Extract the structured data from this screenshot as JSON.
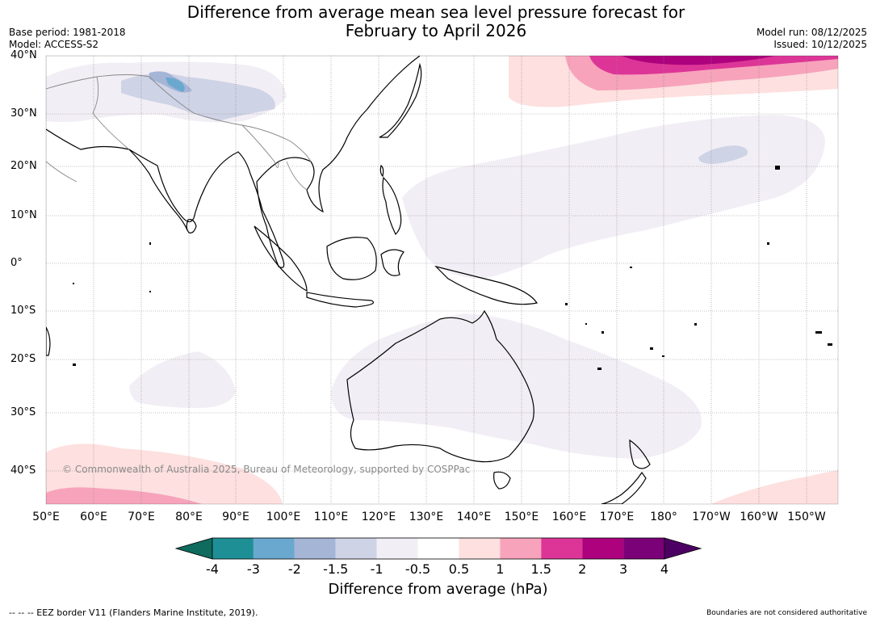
{
  "title_line1": "Difference from average mean sea level pressure forecast for",
  "title_line2": "February to April 2026",
  "base_period": "Base period: 1981-2018",
  "model": "Model: ACCESS-S2",
  "model_run": "Model run: 08/12/2025",
  "issued": "Issued: 10/12/2025",
  "lat_labels": [
    "40°N",
    "30°N",
    "20°N",
    "10°N",
    "0°",
    "10°S",
    "20°S",
    "30°S",
    "40°S"
  ],
  "lon_labels": [
    "50°E",
    "60°E",
    "70°E",
    "80°E",
    "90°E",
    "100°E",
    "110°E",
    "120°E",
    "130°E",
    "140°E",
    "150°E",
    "160°E",
    "170°E",
    "180°",
    "170°W",
    "160°W",
    "150°W"
  ],
  "copyright": "© Commonwealth of Australia 2025, Bureau of Meteorology, supported by COSPPac",
  "colorbar": {
    "title": "Difference from average (hPa)",
    "tick_labels": [
      "-4",
      "-3",
      "-2",
      "-1.5",
      "-1",
      "-0.5",
      "0.5",
      "1",
      "1.5",
      "2",
      "3",
      "4"
    ],
    "colors": [
      "#0e6b5e",
      "#1f8f96",
      "#6aa8cf",
      "#a4b5d6",
      "#cfd3e6",
      "#f2eef5",
      "#ffffff",
      "#fde0df",
      "#f7a3bb",
      "#dd3597",
      "#ad017d",
      "#7a0177",
      "#4d0063"
    ]
  },
  "footer_left": "--  --  -- EEZ border V11 (Flanders Marine Institute, 2019).",
  "footer_right": "Boundaries are not considered authoritative"
}
